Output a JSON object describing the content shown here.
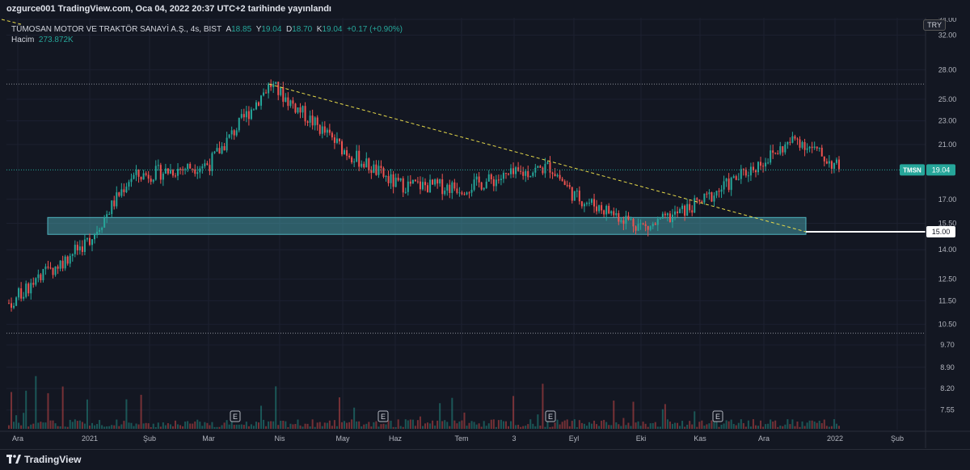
{
  "header": {
    "published": "ozgurce001 TradingView.com, Oca 04, 2022 20:37 UTC+2 tarihinde yayınlandı"
  },
  "legend": {
    "symbol": "TÜMOSAN MOTOR VE TRAKTÖR SANAYİ A.Ş., 4s, BIST",
    "open_label": "A",
    "open": "18.85",
    "high_label": "Y",
    "high": "19.04",
    "low_label": "D",
    "low": "18.70",
    "close_label": "K",
    "close": "19.04",
    "change": "+0.17 (+0.90%)",
    "volume_label": "Hacim",
    "volume": "273.872K"
  },
  "currency": "TRY",
  "footer": {
    "brand": "TradingView"
  },
  "colors": {
    "up": "#26a69a",
    "down": "#ef5350",
    "zone": "#4fb3bf",
    "trendline": "#e6d94a",
    "support": "#ffffff",
    "background": "#131722"
  },
  "chart_data": {
    "type": "candlestick",
    "symbol_tag": "TMSN",
    "last_price": "19.04",
    "support_price": "15.00",
    "ylim": [
      7.0,
      34.0
    ],
    "y_scale": "log",
    "y_ticks": [
      "34.00",
      "32.00",
      "28.00",
      "25.00",
      "23.00",
      "21.00",
      "19.04",
      "17.00",
      "15.50",
      "15.00",
      "14.00",
      "12.50",
      "11.50",
      "10.50",
      "9.70",
      "8.90",
      "8.20",
      "7.55"
    ],
    "x_ticks": [
      "Ara",
      "2021",
      "Şub",
      "Mar",
      "Nis",
      "May",
      "Haz",
      "Tem",
      "3",
      "Eyl",
      "Eki",
      "Kas",
      "Ara",
      "2022",
      "Şub"
    ],
    "earnings_markers": [
      "E",
      "E",
      "E",
      "E"
    ],
    "support_zone": {
      "low": 14.85,
      "high": 15.85
    },
    "resistance_line": 26.5,
    "bottom_dotted_line": 10.15,
    "trendline": {
      "from_price": 26.5,
      "to_price": 15.0
    },
    "key_points": [
      {
        "t": "Ara",
        "price": 11.4
      },
      {
        "t": "2021",
        "price": 14.6
      },
      {
        "t": "Şub",
        "price": 18.5
      },
      {
        "t": "Mar",
        "price": 19.5
      },
      {
        "t": "Nis",
        "price": 26.5
      },
      {
        "t": "May",
        "price": 20.6
      },
      {
        "t": "Haz",
        "price": 18.0
      },
      {
        "t": "Tem",
        "price": 17.8
      },
      {
        "t": "3",
        "price": 19.3
      },
      {
        "t": "Eyl",
        "price": 17.2
      },
      {
        "t": "Eki",
        "price": 15.2
      },
      {
        "t": "Kas",
        "price": 16.8
      },
      {
        "t": "Ara",
        "price": 21.5
      },
      {
        "t": "2022",
        "price": 19.04
      }
    ]
  }
}
